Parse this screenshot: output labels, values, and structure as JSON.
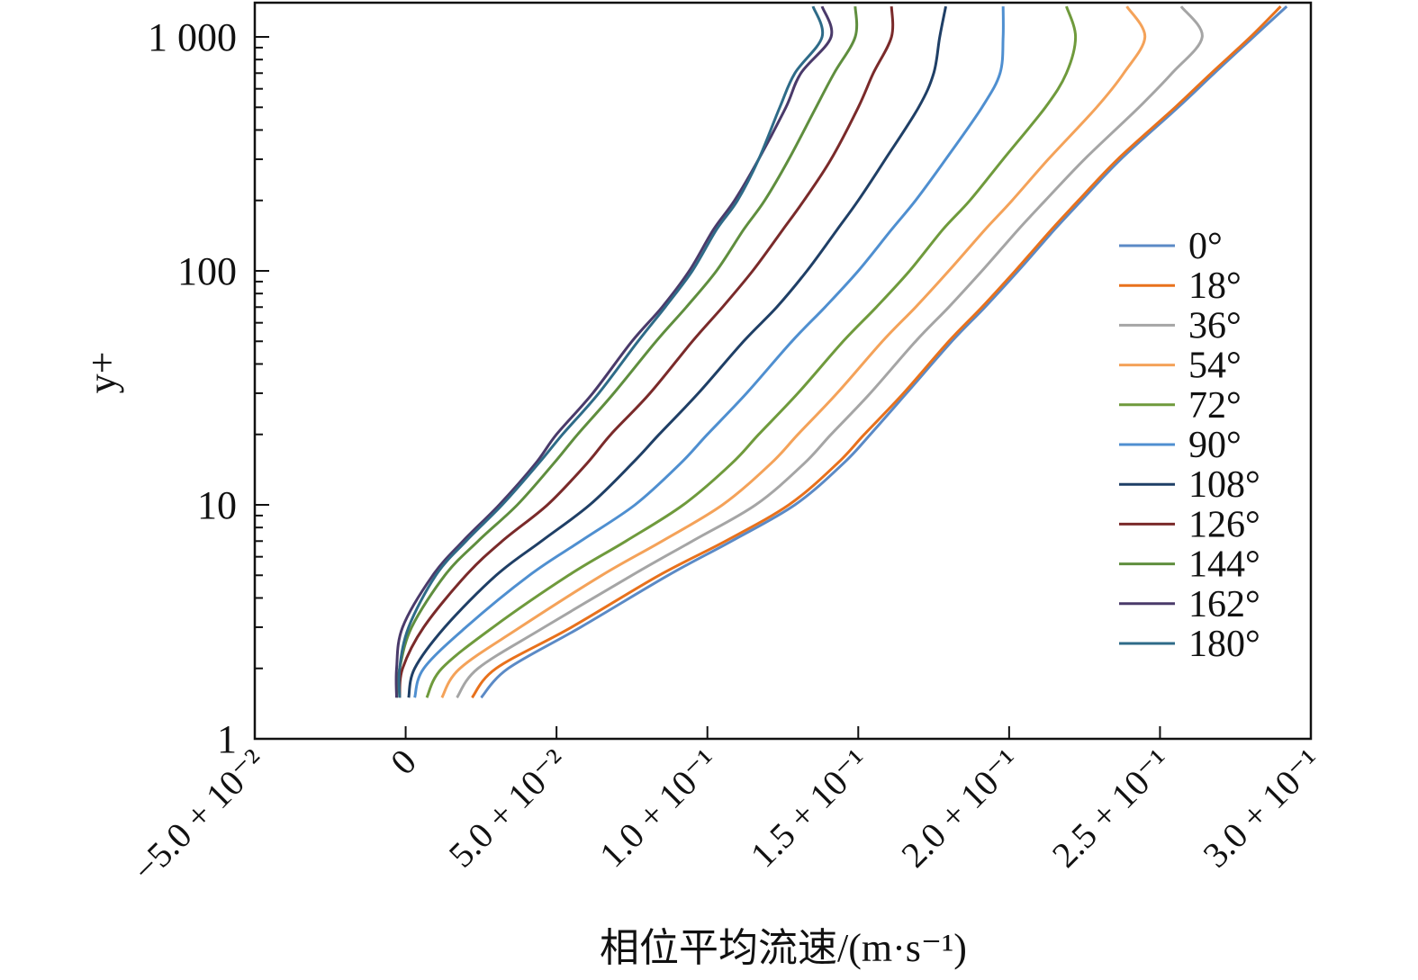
{
  "chart_data": {
    "type": "line",
    "xlabel": "相位平均流速/(m·s⁻¹)",
    "ylabel": "y+",
    "xlim": [
      -0.05,
      0.3
    ],
    "ylim": [
      1,
      1400
    ],
    "yscale": "log",
    "xticks": [
      -0.05,
      0.0,
      0.05,
      0.1,
      0.15,
      0.2,
      0.25,
      0.3
    ],
    "xtick_labels": [
      "−5.0 + 10⁻²",
      "0",
      "5.0 + 10⁻²",
      "1.0 + 10⁻¹",
      "1.5 + 10⁻¹",
      "2.0 + 10⁻¹",
      "2.5 + 10⁻¹",
      "3.0 + 10⁻¹"
    ],
    "yticks": [
      1,
      10,
      100,
      1000
    ],
    "ytick_labels": [
      "1",
      "10",
      "100",
      "1 000"
    ],
    "legend": "right",
    "y": [
      1.5,
      2,
      3,
      5,
      7,
      10,
      15,
      20,
      30,
      50,
      70,
      100,
      150,
      200,
      300,
      500,
      700,
      1000,
      1350
    ],
    "series": [
      {
        "name": "0°",
        "color": "#5b8ac6",
        "values": [
          0.025,
          0.034,
          0.058,
          0.087,
          0.108,
          0.129,
          0.145,
          0.154,
          0.166,
          0.181,
          0.192,
          0.203,
          0.215,
          0.224,
          0.237,
          0.256,
          0.268,
          0.281,
          0.292
        ]
      },
      {
        "name": "18°",
        "color": "#e8711c",
        "values": [
          0.022,
          0.03,
          0.055,
          0.084,
          0.106,
          0.127,
          0.143,
          0.152,
          0.165,
          0.18,
          0.191,
          0.202,
          0.214,
          0.223,
          0.236,
          0.255,
          0.267,
          0.28,
          0.29
        ]
      },
      {
        "name": "36°",
        "color": "#a5a5a5",
        "values": [
          0.017,
          0.024,
          0.046,
          0.075,
          0.095,
          0.116,
          0.132,
          0.141,
          0.154,
          0.169,
          0.18,
          0.191,
          0.203,
          0.212,
          0.225,
          0.243,
          0.254,
          0.264,
          0.257
        ]
      },
      {
        "name": "54°",
        "color": "#f4a259",
        "values": [
          0.012,
          0.018,
          0.038,
          0.065,
          0.085,
          0.105,
          0.121,
          0.13,
          0.143,
          0.158,
          0.169,
          0.18,
          0.192,
          0.201,
          0.213,
          0.229,
          0.238,
          0.245,
          0.239
        ]
      },
      {
        "name": "72°",
        "color": "#6f9a3c",
        "values": [
          0.007,
          0.012,
          0.029,
          0.054,
          0.073,
          0.092,
          0.108,
          0.117,
          0.13,
          0.145,
          0.156,
          0.167,
          0.178,
          0.187,
          0.198,
          0.212,
          0.219,
          0.222,
          0.219
        ]
      },
      {
        "name": "90°",
        "color": "#4f8fd0",
        "values": [
          0.003,
          0.006,
          0.02,
          0.041,
          0.058,
          0.076,
          0.091,
          0.1,
          0.113,
          0.128,
          0.139,
          0.15,
          0.161,
          0.169,
          0.179,
          0.191,
          0.197,
          0.198,
          0.198
        ]
      },
      {
        "name": "108°",
        "color": "#1f3f66",
        "values": [
          0.001,
          0.003,
          0.013,
          0.03,
          0.045,
          0.061,
          0.075,
          0.084,
          0.097,
          0.112,
          0.123,
          0.133,
          0.143,
          0.15,
          0.159,
          0.17,
          0.175,
          0.177,
          0.179
        ]
      },
      {
        "name": "126°",
        "color": "#7a2a2a",
        "values": [
          -0.002,
          -0.001,
          0.006,
          0.02,
          0.032,
          0.047,
          0.06,
          0.068,
          0.081,
          0.095,
          0.105,
          0.115,
          0.125,
          0.132,
          0.141,
          0.15,
          0.155,
          0.161,
          0.161
        ]
      },
      {
        "name": "144°",
        "color": "#5f8e3e",
        "values": [
          -0.003,
          -0.002,
          0.002,
          0.013,
          0.024,
          0.037,
          0.049,
          0.057,
          0.069,
          0.083,
          0.093,
          0.103,
          0.112,
          0.119,
          0.127,
          0.136,
          0.142,
          0.149,
          0.149
        ]
      },
      {
        "name": "162°",
        "color": "#4a3a6a",
        "values": [
          -0.003,
          -0.003,
          -0.001,
          0.009,
          0.019,
          0.031,
          0.043,
          0.05,
          0.062,
          0.075,
          0.085,
          0.094,
          0.102,
          0.109,
          0.117,
          0.126,
          0.131,
          0.141,
          0.138
        ]
      },
      {
        "name": "180°",
        "color": "#2e6b88",
        "values": [
          -0.002,
          -0.002,
          0.001,
          0.01,
          0.02,
          0.032,
          0.044,
          0.052,
          0.064,
          0.077,
          0.086,
          0.095,
          0.103,
          0.11,
          0.117,
          0.124,
          0.129,
          0.138,
          0.135
        ]
      }
    ]
  }
}
